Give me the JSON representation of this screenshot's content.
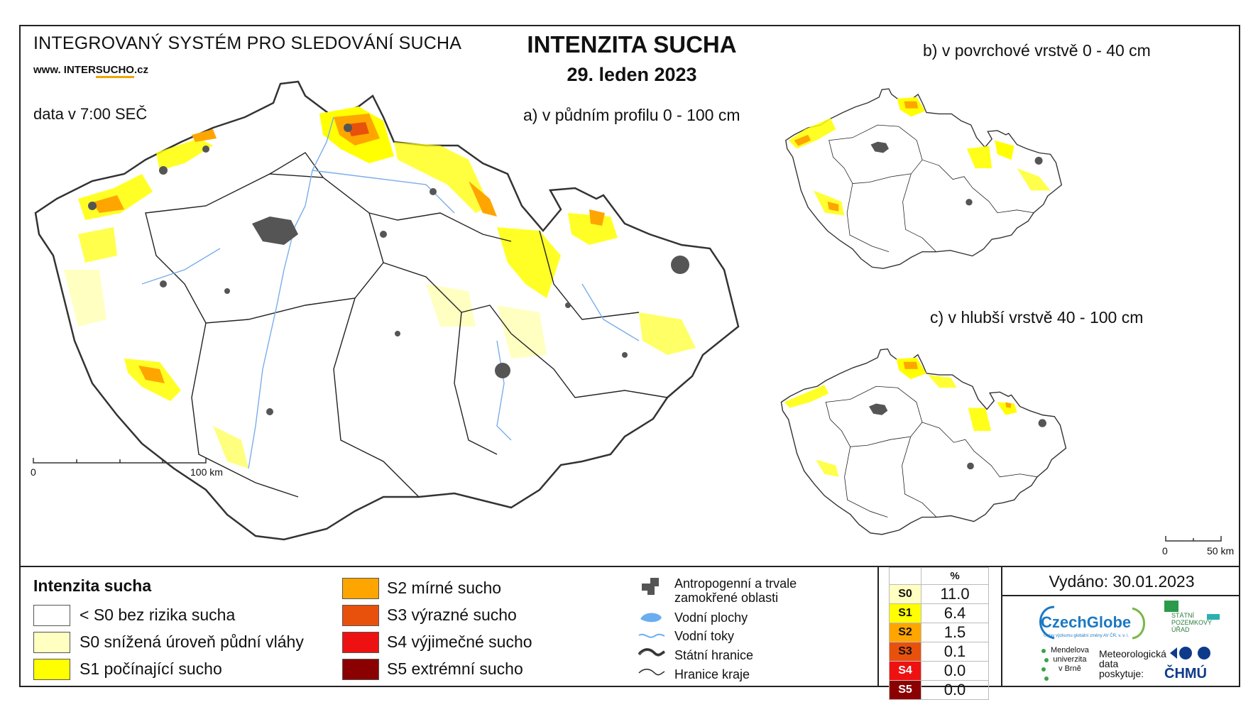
{
  "header": {
    "system_name": "INTEGROVANÝ SYSTÉM PRO SLEDOVÁNÍ SUCHA",
    "website_prefix": "www. INTER",
    "website_highlight": "SUCHO",
    "website_suffix": ".cz",
    "data_time": "data v 7:00 SEČ",
    "title": "INTENZITA SUCHA",
    "date": "29. leden 2023"
  },
  "maps": {
    "a": {
      "caption": "a) v půdním profilu 0 - 100 cm",
      "scale_zero": "0",
      "scale_label": "100 km"
    },
    "b": {
      "caption": "b) v povrchové vrstvě 0 - 40 cm"
    },
    "c": {
      "caption": "c) v hlubší vrstvě 40 - 100 cm",
      "scale_zero": "0",
      "scale_label": "50 km"
    }
  },
  "legend": {
    "title": "Intenzita sucha",
    "classes": [
      {
        "label": "< S0 bez rizika sucha",
        "color": "#ffffff"
      },
      {
        "label": "S0 snížená úroveň půdní vláhy",
        "color": "#ffffc2"
      },
      {
        "label": "S1 počínající sucho",
        "color": "#ffff00"
      },
      {
        "label": "S2 mírné sucho",
        "color": "#ffa500"
      },
      {
        "label": "S3 výrazné sucho",
        "color": "#e8510c"
      },
      {
        "label": "S4 výjimečné sucho",
        "color": "#ee1111"
      },
      {
        "label": "S5 extrémní sucho",
        "color": "#8b0000"
      }
    ],
    "symbols": [
      {
        "label_line1": "Antropogenní a trvale",
        "label_line2": "zamokřené oblasti",
        "icon": "urban-area-icon"
      },
      {
        "label": "Vodní plochy",
        "icon": "water-body-icon"
      },
      {
        "label": "Vodní toky",
        "icon": "river-icon"
      },
      {
        "label": "Státní hranice",
        "icon": "state-border-icon"
      },
      {
        "label": "Hranice kraje",
        "icon": "region-border-icon"
      }
    ]
  },
  "percent_table": {
    "header": "%",
    "rows": [
      {
        "key": "S0",
        "value": "11.0",
        "color": "#ffffc2"
      },
      {
        "key": "S1",
        "value": "6.4",
        "color": "#ffff00"
      },
      {
        "key": "S2",
        "value": "1.5",
        "color": "#ffa500"
      },
      {
        "key": "S3",
        "value": "0.1",
        "color": "#e8510c"
      },
      {
        "key": "S4",
        "value": "0.0",
        "color": "#ee1111"
      },
      {
        "key": "S5",
        "value": "0.0",
        "color": "#8b0000"
      }
    ]
  },
  "footer": {
    "issued": "Vydáno: 30.01.2023",
    "czechglobe": "CzechGlobe",
    "czechglobe_sub": "Ústav výzkumu globální změny AV ČR, v. v. i.",
    "mendel_line1": "Mendelova",
    "mendel_line2": "univerzita",
    "mendel_line3": "v Brně",
    "meteo_line1": "Meteorologická",
    "meteo_line2": "data",
    "meteo_line3": "poskytuje:",
    "chmu": "ČHMÚ",
    "spu_line1": "STÁTNÍ",
    "spu_line2": "POZEMKOVÝ",
    "spu_line3": "ÚŘAD"
  }
}
